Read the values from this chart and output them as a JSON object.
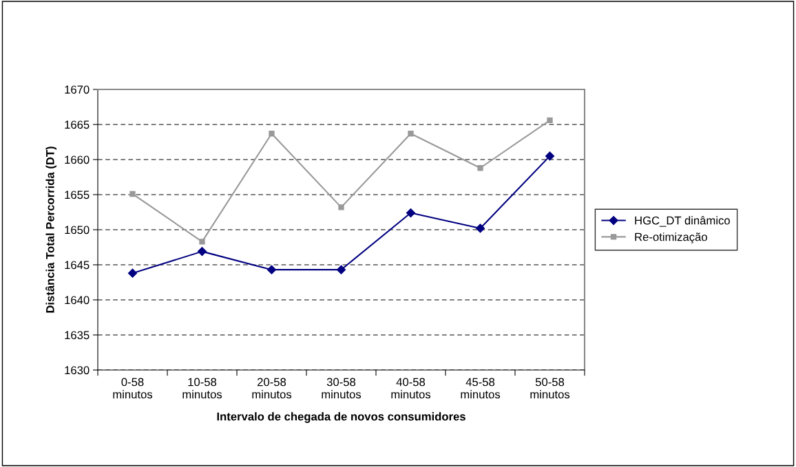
{
  "chart_data": {
    "type": "line",
    "xlabel": "Intervalo de chegada de novos consumidores",
    "ylabel": "Distância Total Percorrida (DT)",
    "categories": [
      "0-58\nminutos",
      "10-58\nminutos",
      "20-58\nminutos",
      "30-58\nminutos",
      "40-58\nminutos",
      "45-58\nminutos",
      "50-58\nminutos"
    ],
    "series": [
      {
        "name": "HGC_DT dinâmico",
        "color": "#000080",
        "marker": "diamond",
        "values": [
          1643.8,
          1646.9,
          1644.3,
          1644.3,
          1652.4,
          1650.2,
          1660.5
        ]
      },
      {
        "name": "Re-otimização",
        "color": "#999999",
        "marker": "square",
        "values": [
          1655.1,
          1648.3,
          1663.7,
          1653.2,
          1663.7,
          1658.8,
          1665.6
        ]
      }
    ],
    "ylim": [
      1630,
      1670
    ],
    "yticks": [
      1630,
      1635,
      1640,
      1645,
      1650,
      1655,
      1660,
      1665,
      1670
    ],
    "grid": "y",
    "legend": "right",
    "line_style": "solid"
  }
}
